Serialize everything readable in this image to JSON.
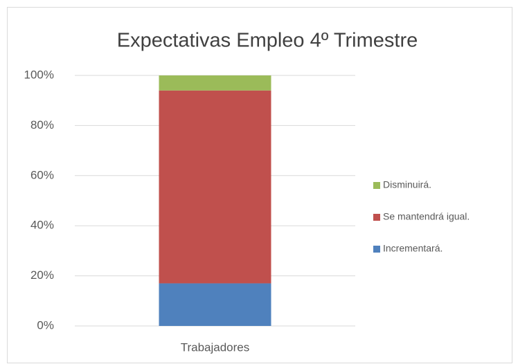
{
  "chart_data": {
    "type": "stacked_bar",
    "title": "Expectativas Empleo 4º Trimestre",
    "categories": [
      "Trabajadores"
    ],
    "series": [
      {
        "name": "Incrementará.",
        "color": "#4f81bd",
        "values": [
          17
        ]
      },
      {
        "name": "Se mantendrá igual.",
        "color": "#c0504d",
        "values": [
          77
        ]
      },
      {
        "name": "Disminuirá.",
        "color": "#9bbb59",
        "values": [
          6
        ]
      }
    ],
    "ylim": [
      0,
      100
    ],
    "yticks": [
      {
        "value": 0,
        "label": "0%"
      },
      {
        "value": 20,
        "label": "20%"
      },
      {
        "value": 40,
        "label": "40%"
      },
      {
        "value": 60,
        "label": "60%"
      },
      {
        "value": 80,
        "label": "80%"
      },
      {
        "value": 100,
        "label": "100%"
      }
    ],
    "grid": true,
    "legend": "right"
  }
}
